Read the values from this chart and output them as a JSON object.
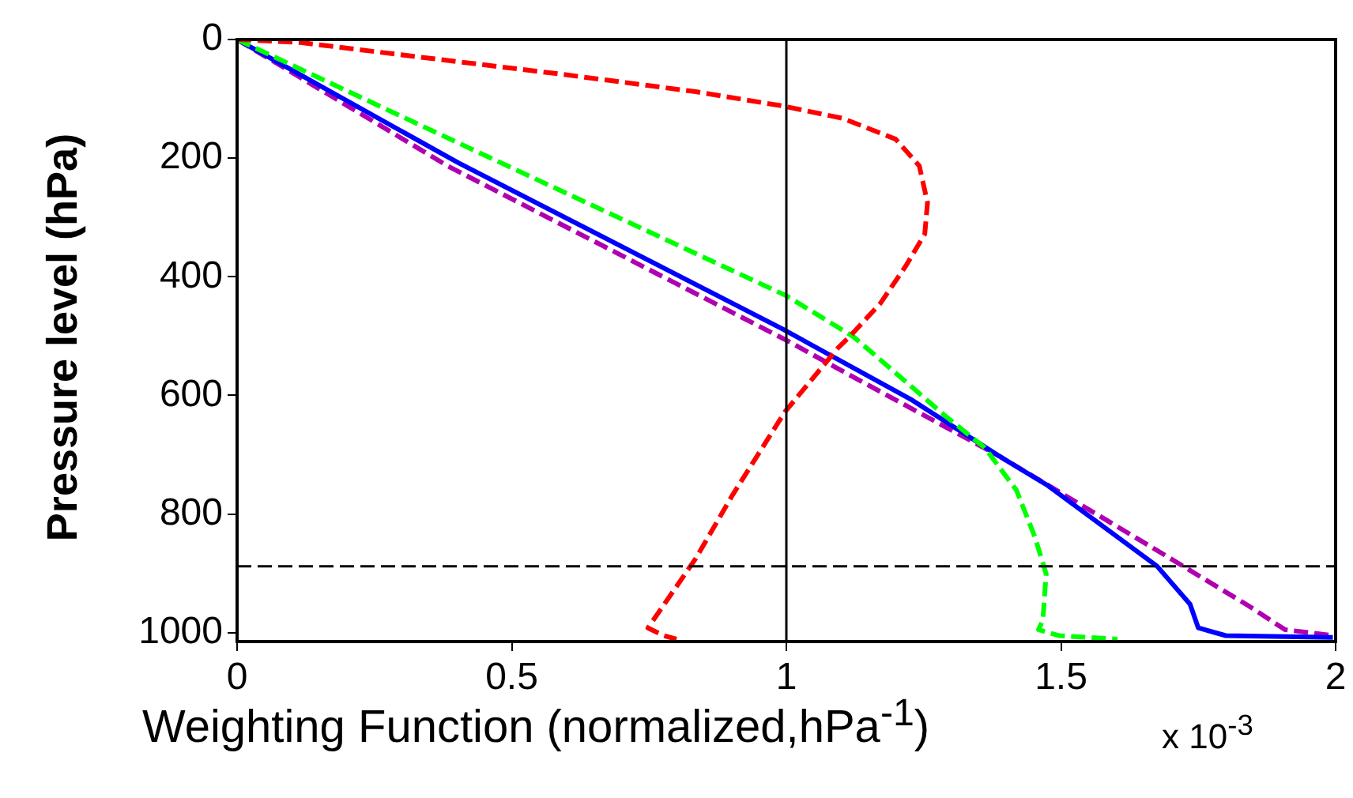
{
  "chart_data": {
    "type": "line",
    "xlabel": "Weighting Function (normalized,hPa$^{-1}$)",
    "ylabel": "Pressure level (hPa)",
    "annotations": [
      "x 10$^{-3}$"
    ],
    "xlim": [
      0,
      2
    ],
    "xticks": [
      0,
      0.5,
      1,
      1.5,
      2
    ],
    "ylim": [
      1015,
      0
    ],
    "yticks": [
      0,
      200,
      400,
      600,
      800,
      1000
    ],
    "series": [
      {
        "color": "#ff0000",
        "line_style": "dashed",
        "x": [
          0,
          0.115,
          0.354,
          0.595,
          0.835,
          0.993,
          1.103,
          1.199,
          1.242,
          1.257,
          1.252,
          1.218,
          1.171,
          1.117,
          1.094,
          0.998,
          0.902,
          0.835,
          0.748,
          0.777,
          0.8
        ],
        "values": [
          0,
          5,
          32,
          59,
          88,
          112,
          133,
          168,
          213,
          275,
          328,
          381,
          445,
          499,
          520,
          627,
          768,
          875,
          992,
          1005,
          1011
        ]
      },
      {
        "color": "#00ff00",
        "line_style": "dashed",
        "x": [
          0,
          0.432,
          1.0,
          1.122,
          1.18,
          1.286,
          1.361,
          1.419,
          1.453,
          1.473,
          1.467,
          1.459,
          1.496,
          1.603
        ],
        "values": [
          0,
          187,
          432,
          501,
          547,
          632,
          688,
          760,
          840,
          901,
          979,
          995,
          1005,
          1011
        ]
      },
      {
        "color": "#0000ff",
        "line_style": "solid",
        "x": [
          0,
          0.403,
          0.993,
          1.229,
          1.387,
          1.476,
          1.675,
          1.735,
          1.75,
          1.8,
          1.995
        ],
        "values": [
          0,
          208,
          488,
          608,
          702,
          752,
          888,
          952,
          992,
          1005,
          1008
        ]
      },
      {
        "color": "#b000b0",
        "line_style": "dashed",
        "x": [
          0,
          0.383,
          1.0,
          1.114,
          1.387,
          1.66,
          1.842,
          1.908,
          1.995
        ],
        "values": [
          0,
          213,
          507,
          565,
          702,
          853,
          955,
          995,
          1005
        ]
      }
    ],
    "ref_lines": [
      {
        "axis": "x",
        "value": 1,
        "color": "#000000",
        "line_style": "solid"
      },
      {
        "axis": "y",
        "value": 888,
        "color": "#000000",
        "line_style": "dashed"
      }
    ]
  }
}
